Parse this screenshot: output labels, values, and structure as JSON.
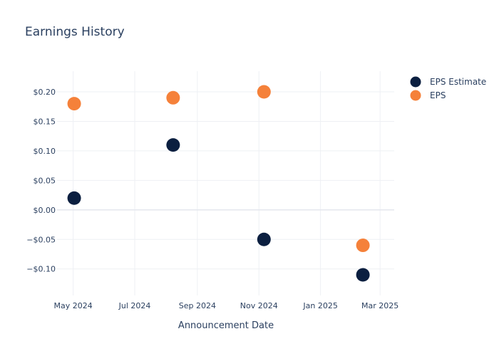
{
  "chart_data": {
    "type": "scatter",
    "title": "Earnings History",
    "xlabel": "Announcement Date",
    "ylabel": "",
    "x_axis_type": "date",
    "x_range": [
      "2024-04-15",
      "2025-03-15"
    ],
    "x_ticks": [
      {
        "date": "2024-05-01",
        "label": "May 2024"
      },
      {
        "date": "2024-07-01",
        "label": "Jul 2024"
      },
      {
        "date": "2024-09-01",
        "label": "Sep 2024"
      },
      {
        "date": "2024-11-01",
        "label": "Nov 2024"
      },
      {
        "date": "2025-01-01",
        "label": "Jan 2025"
      },
      {
        "date": "2025-03-01",
        "label": "Mar 2025"
      }
    ],
    "y_range": [
      -0.145,
      0.235
    ],
    "y_ticks": [
      {
        "value": 0.2,
        "label": "$0.20"
      },
      {
        "value": 0.15,
        "label": "$0.15"
      },
      {
        "value": 0.1,
        "label": "$0.10"
      },
      {
        "value": 0.05,
        "label": "$0.05"
      },
      {
        "value": 0.0,
        "label": "$0.00"
      },
      {
        "value": -0.05,
        "label": "−$0.05"
      },
      {
        "value": -0.1,
        "label": "−$0.10"
      }
    ],
    "grid": true,
    "legend_position": "top-right",
    "series": [
      {
        "name": "EPS Estimate",
        "color": "#0b1f40",
        "points": [
          {
            "x": "2024-05-02",
            "y": 0.02
          },
          {
            "x": "2024-08-08",
            "y": 0.11
          },
          {
            "x": "2024-11-06",
            "y": -0.05
          },
          {
            "x": "2025-02-12",
            "y": -0.11
          }
        ]
      },
      {
        "name": "EPS",
        "color": "#f5813a",
        "points": [
          {
            "x": "2024-05-02",
            "y": 0.18
          },
          {
            "x": "2024-08-08",
            "y": 0.19
          },
          {
            "x": "2024-11-06",
            "y": 0.2
          },
          {
            "x": "2025-02-12",
            "y": -0.06
          }
        ]
      }
    ]
  }
}
